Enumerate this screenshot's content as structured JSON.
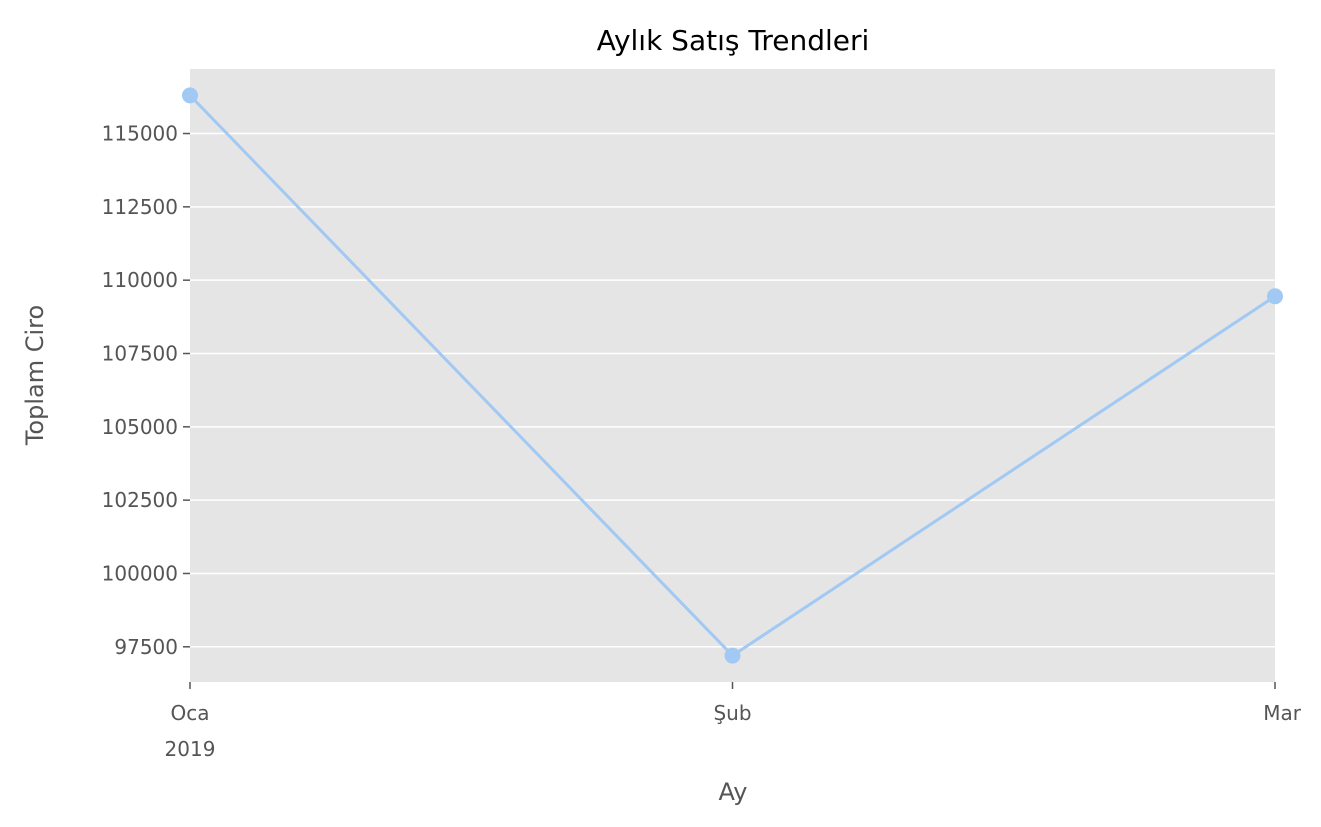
{
  "chart_data": {
    "type": "line",
    "title": "Aylık Satış Trendleri",
    "xlabel": "Ay",
    "ylabel": "Toplam Ciro",
    "x": [
      "2019-01",
      "2019-02",
      "2019-03"
    ],
    "x_tick_labels": [
      {
        "line1": "Oca",
        "line2": "2019"
      },
      {
        "line1": "Şub",
        "line2": ""
      },
      {
        "line1": "Mar",
        "line2": ""
      }
    ],
    "series": [
      {
        "values": [
          116300,
          97200,
          109450
        ],
        "color": "#a1c9f4"
      }
    ],
    "y_ticks": [
      97500,
      100000,
      102500,
      105000,
      107500,
      110000,
      112500,
      115000
    ],
    "ylim": [
      96300,
      117200
    ],
    "grid": true,
    "marker": "circle",
    "colors": {
      "plot_background": "#e5e5e5",
      "grid": "#ffffff",
      "line": "#a1c9f4",
      "text": "#555555"
    }
  }
}
